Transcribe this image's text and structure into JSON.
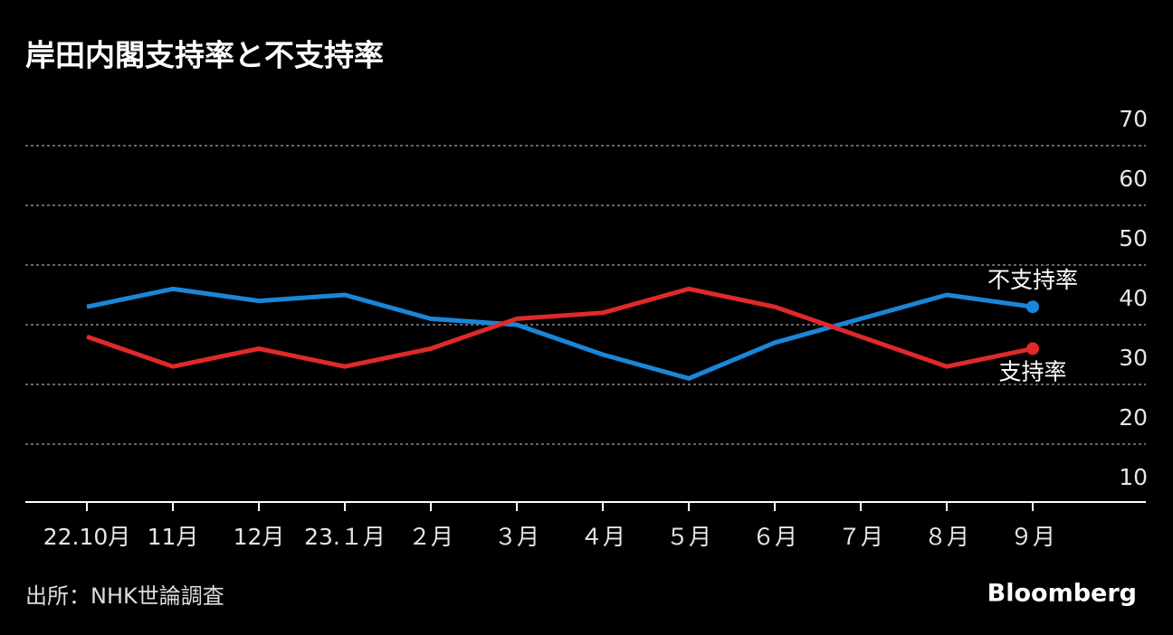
{
  "chart_data": {
    "type": "line",
    "title": "岸田内閣支持率と不支持率",
    "categories": [
      "22.10月",
      "11月",
      "12月",
      "23.１月",
      "２月",
      "３月",
      "４月",
      "５月",
      "６月",
      "７月",
      "８月",
      "９月"
    ],
    "series": [
      {
        "name": "不支持率",
        "color": "#1a86d8",
        "values": [
          43,
          46,
          44,
          45,
          41,
          40,
          35,
          31,
          37,
          41,
          45,
          43
        ]
      },
      {
        "name": "支持率",
        "color": "#e0292a",
        "values": [
          38,
          33,
          36,
          33,
          36,
          41,
          42,
          46,
          43,
          38,
          33,
          36
        ]
      }
    ],
    "ylim": [
      10,
      70
    ],
    "yticks": [
      10,
      20,
      30,
      40,
      50,
      60,
      70
    ],
    "grid": true,
    "source": "出所：NHK世論調査",
    "brand": "Bloomberg"
  }
}
